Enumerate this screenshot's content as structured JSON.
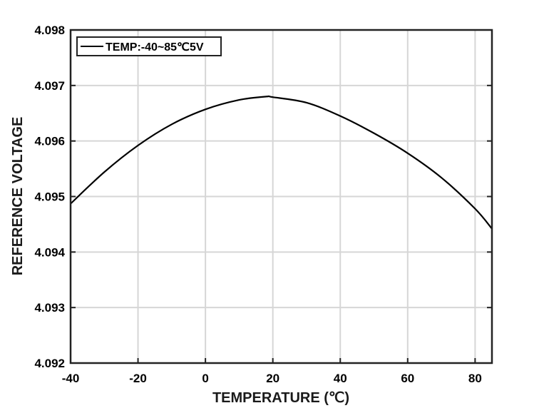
{
  "chart_data": {
    "type": "line",
    "xlabel": "TEMPERATURE (℃)",
    "ylabel": "REFERENCE VOLTAGE",
    "xlim": [
      -40,
      85
    ],
    "ylim": [
      4.092,
      4.098
    ],
    "x_ticks": [
      -40,
      -20,
      0,
      20,
      40,
      60,
      80
    ],
    "x_tick_labels": [
      "-40",
      "-20",
      "0",
      "20",
      "40",
      "60",
      "80"
    ],
    "y_ticks": [
      4.092,
      4.093,
      4.094,
      4.095,
      4.096,
      4.097,
      4.098
    ],
    "y_tick_labels": [
      "4.092",
      "4.093",
      "4.094",
      "4.095",
      "4.096",
      "4.097",
      "4.098"
    ],
    "grid": true,
    "legend_position": "top-left",
    "series": [
      {
        "name": "TEMP:-40~85℃5V",
        "color": "#000000",
        "x": [
          -40,
          -30,
          -20,
          -10,
          0,
          10,
          18,
          20,
          30,
          40,
          50,
          60,
          70,
          80,
          85
        ],
        "y": [
          4.09487,
          4.09544,
          4.09592,
          4.0963,
          4.09657,
          4.09674,
          4.0968,
          4.09679,
          4.09669,
          4.09645,
          4.09614,
          4.09578,
          4.09534,
          4.09478,
          4.09442
        ]
      }
    ]
  }
}
